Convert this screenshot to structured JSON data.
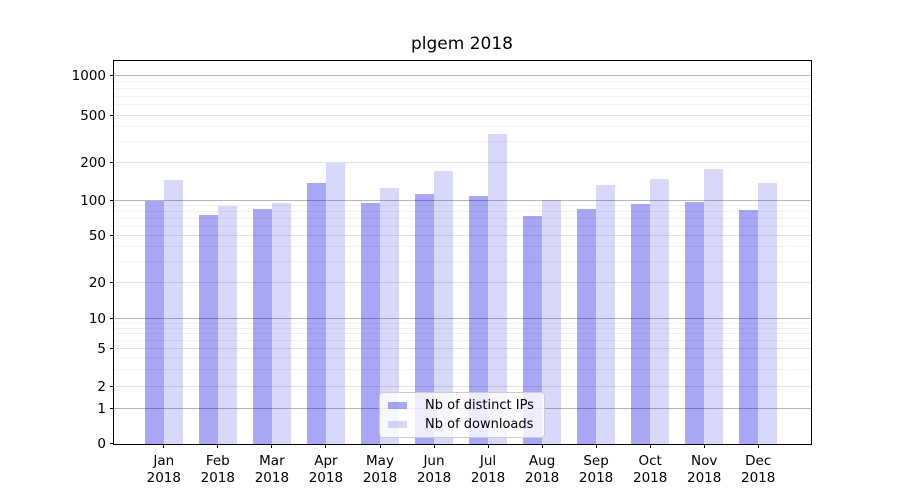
{
  "title": "plgem 2018",
  "year": "2018",
  "legend": {
    "items": [
      {
        "label": "Nb of distinct IPs",
        "color_key": "bar_distinct_ips"
      },
      {
        "label": "Nb of downloads",
        "color_key": "bar_downloads"
      }
    ]
  },
  "colors": {
    "bar_distinct_ips": "rgba(10,10,230,0.36)",
    "bar_downloads": "rgba(10,10,230,0.16)",
    "bar_distinct_ips_hex": "#a7a7f6",
    "bar_downloads_hex": "#d8d8fb",
    "grid_major": "#b5b5b5",
    "grid_medium": "#e2e2e2",
    "grid_minor": "#f1f1f1",
    "axis": "#000000",
    "text": "#000000",
    "legend_border": "#cccccc"
  },
  "chart_data": {
    "type": "bar",
    "title": "plgem 2018",
    "xlabel": "",
    "ylabel": "",
    "grid": "horizontal",
    "legend_position": "lower center inside plot",
    "yscale": "quasi-log (log10(1+x))",
    "ylim": [
      0,
      1300
    ],
    "yticks": [
      0,
      1,
      2,
      5,
      10,
      20,
      50,
      100,
      200,
      500,
      1000
    ],
    "ytick_labels": [
      "0",
      "1",
      "2",
      "5",
      "10",
      "20",
      "50",
      "100",
      "200",
      "500",
      "1000"
    ],
    "categories": [
      "Jan",
      "Feb",
      "Mar",
      "Apr",
      "May",
      "Jun",
      "Jul",
      "Aug",
      "Sep",
      "Oct",
      "Nov",
      "Dec"
    ],
    "x_label_line2": "2018",
    "series": [
      {
        "name": "Nb of distinct IPs",
        "values": [
          100,
          76,
          86,
          140,
          97,
          114,
          110,
          75,
          85,
          95,
          98,
          84
        ]
      },
      {
        "name": "Nb of downloads",
        "values": [
          147,
          90,
          97,
          200,
          127,
          173,
          350,
          102,
          133,
          149,
          180,
          138
        ]
      }
    ]
  }
}
